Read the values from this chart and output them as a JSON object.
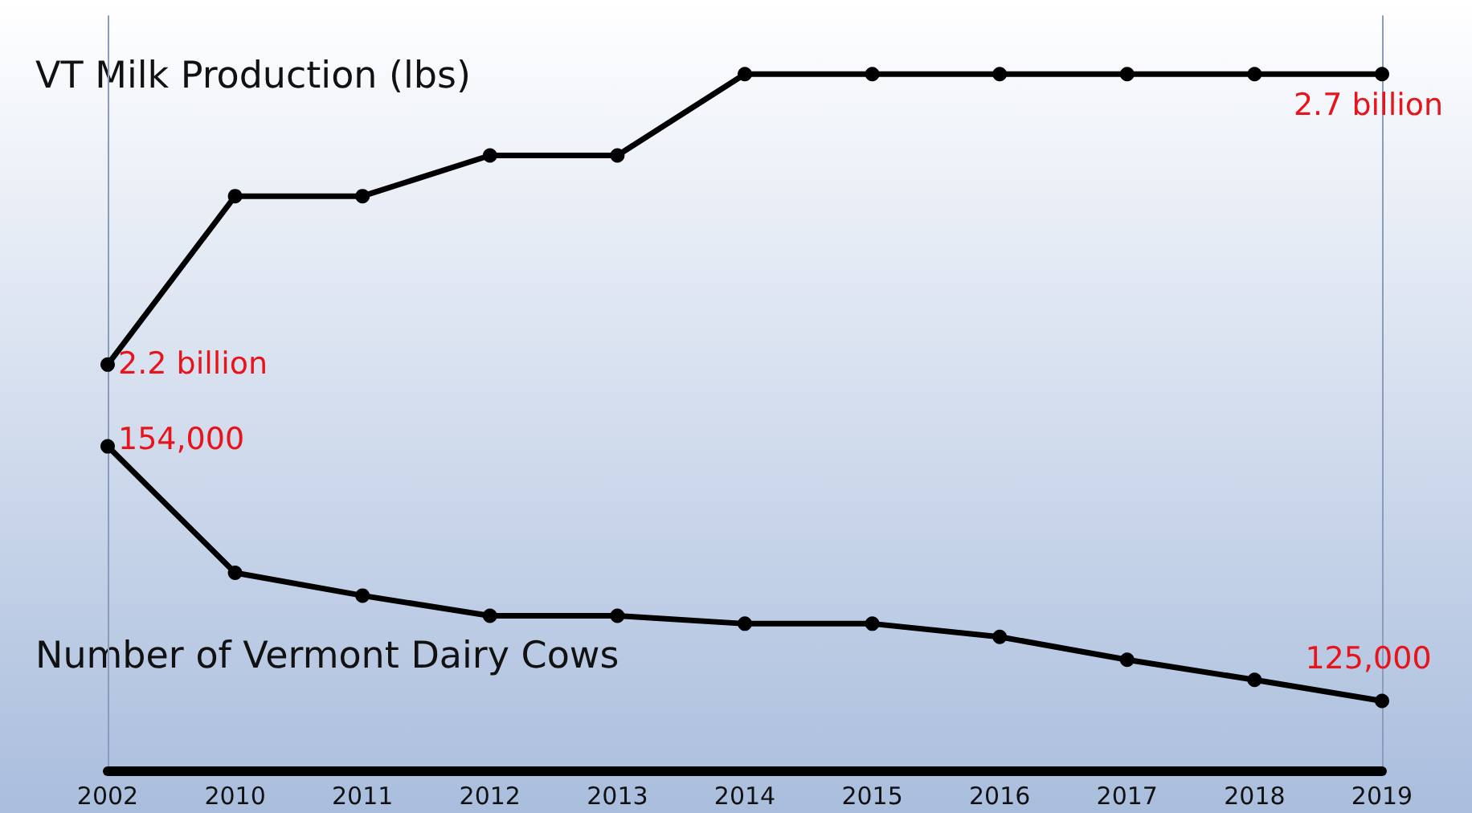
{
  "chart_data": {
    "type": "line",
    "categories": [
      "2002",
      "2010",
      "2011",
      "2012",
      "2013",
      "2014",
      "2015",
      "2016",
      "2017",
      "2018",
      "2019"
    ],
    "series": [
      {
        "name": "VT Milk Production (lbs)",
        "color": "#000000",
        "values": [
          2.2,
          2.49,
          2.49,
          2.56,
          2.56,
          2.7,
          2.7,
          2.7,
          2.7,
          2.7,
          2.7
        ],
        "value_labels": [
          "2.2 billion",
          null,
          null,
          null,
          null,
          null,
          null,
          null,
          null,
          null,
          "2.7 billion"
        ]
      },
      {
        "name": "Number of Vermont Dairy Cows",
        "color": "#000000",
        "axis": "y2",
        "values": [
          154000,
          139600,
          137000,
          134700,
          134700,
          133800,
          133800,
          132300,
          129700,
          127400,
          125000
        ],
        "value_labels": [
          "154,000",
          null,
          null,
          null,
          null,
          null,
          null,
          null,
          null,
          null,
          "125,000"
        ]
      }
    ],
    "ylim": [
      1.5,
      2.8
    ],
    "y2lim": [
      117000,
      203000
    ],
    "tick_labels": "x",
    "grid": false,
    "legend": false,
    "marker": "circle",
    "line_style": "solid"
  }
}
